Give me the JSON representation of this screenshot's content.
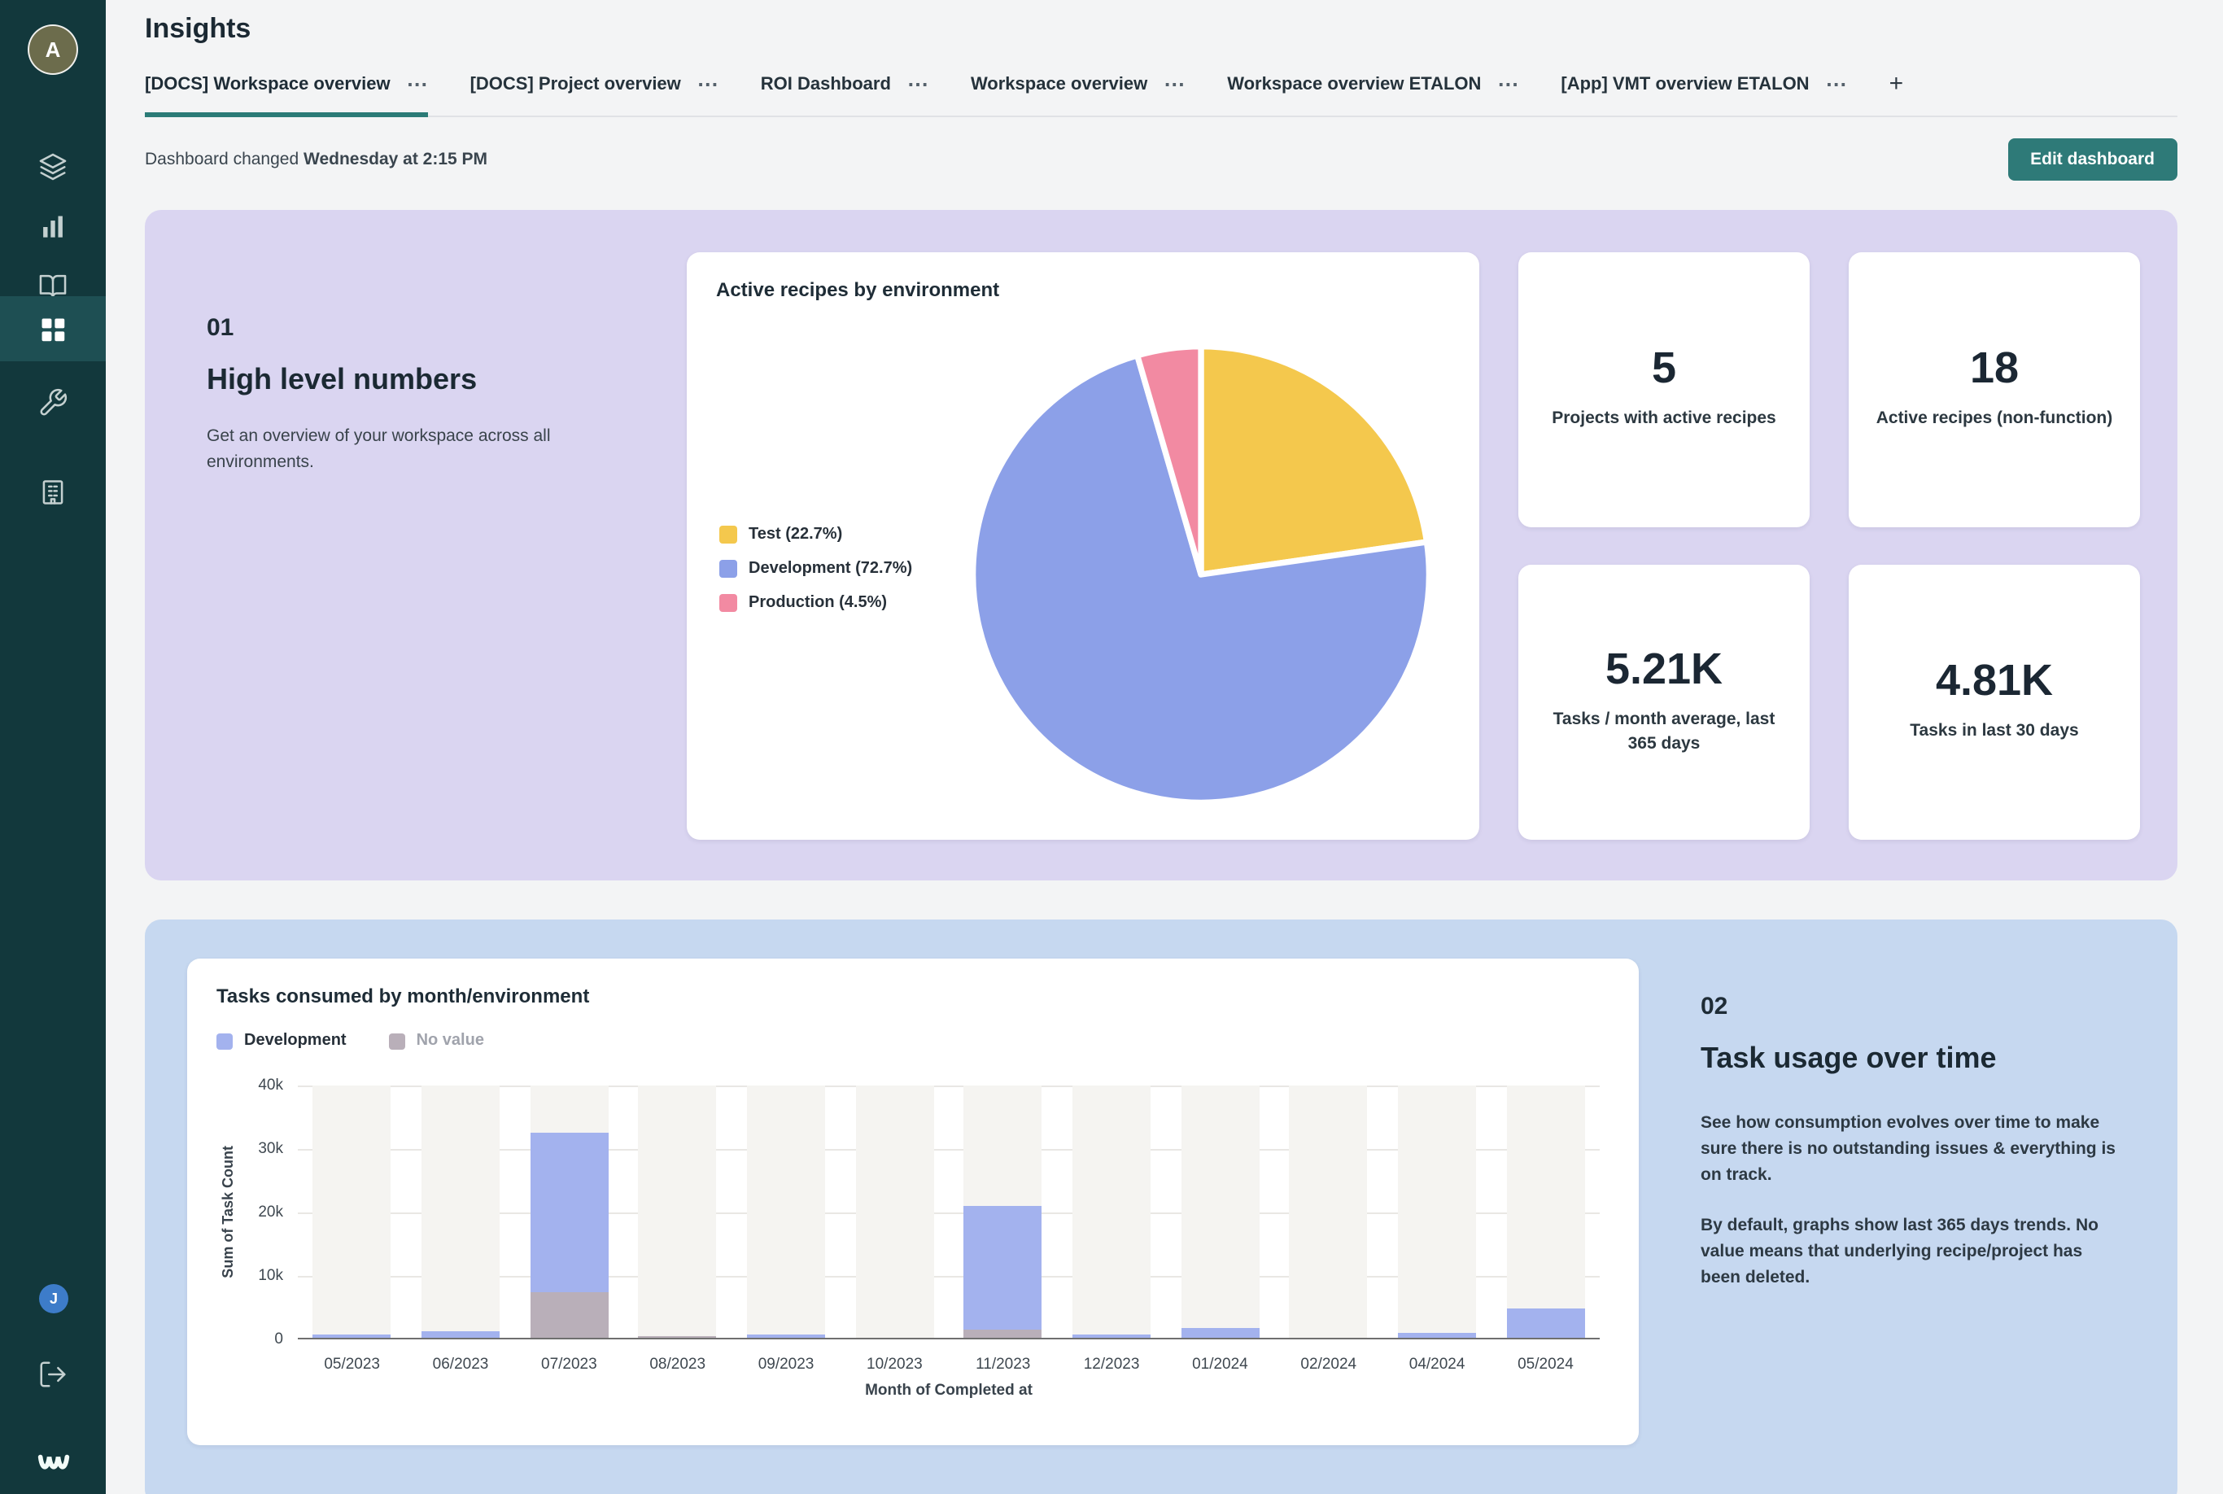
{
  "colors": {
    "accent_teal": "#2B7B77",
    "sidebar_bg": "#12383C",
    "section1_bg": "#DAD5F1",
    "section2_bg": "#C6D8F0"
  },
  "sidebar": {
    "avatar_initial": "A",
    "bottom_avatar_initial": "J"
  },
  "page": {
    "title": "Insights"
  },
  "tabs": {
    "items": [
      {
        "label": "[DOCS] Workspace overview",
        "active": true
      },
      {
        "label": "[DOCS] Project overview",
        "active": false
      },
      {
        "label": "ROI Dashboard",
        "active": false
      },
      {
        "label": "Workspace overview",
        "active": false
      },
      {
        "label": "Workspace overview ETALON",
        "active": false
      },
      {
        "label": "[App] VMT overview ETALON",
        "active": false
      }
    ],
    "more_icon": "⋯",
    "add_icon": "+"
  },
  "header": {
    "changed_prefix": "Dashboard changed",
    "changed_time": "Wednesday at 2:15 PM",
    "edit_button": "Edit dashboard"
  },
  "section1": {
    "number": "01",
    "title": "High level numbers",
    "description": "Get an overview of your workspace across all environments.",
    "stats": [
      {
        "value": "5",
        "label": "Projects with active recipes"
      },
      {
        "value": "18",
        "label": "Active recipes (non-function)"
      },
      {
        "value": "5.21K",
        "label": "Tasks / month average, last 365 days"
      },
      {
        "value": "4.81K",
        "label": "Tasks in last 30 days"
      }
    ]
  },
  "section2": {
    "number": "02",
    "title": "Task usage over time",
    "p1": "See how consumption evolves over time to make sure there is no outstanding issues & everything is on track.",
    "p2": "By default, graphs show last 365 days trends. No value means that underlying recipe/project has been deleted."
  },
  "chart_data": [
    {
      "type": "pie",
      "title": "Active recipes by environment",
      "legend_position": "left",
      "slices": [
        {
          "label": "Test",
          "pct": 22.7,
          "color": "#F4C84D"
        },
        {
          "label": "Development",
          "pct": 72.7,
          "color": "#8CA0E8"
        },
        {
          "label": "Production",
          "pct": 4.5,
          "color": "#F28AA2"
        }
      ]
    },
    {
      "type": "bar",
      "stacked": true,
      "title": "Tasks consumed by month/environment",
      "categories": [
        "05/2023",
        "06/2023",
        "07/2023",
        "08/2023",
        "09/2023",
        "10/2023",
        "11/2023",
        "12/2023",
        "01/2024",
        "02/2024",
        "04/2024",
        "05/2024"
      ],
      "series": [
        {
          "name": "Development",
          "color": "#A3B2EE",
          "values": [
            500,
            900,
            25000,
            0,
            500,
            0,
            19500,
            400,
            1800,
            300,
            1000,
            4800
          ]
        },
        {
          "name": "No value",
          "color": "#B9AFB9",
          "values": [
            100,
            200,
            7500,
            400,
            100,
            0,
            1500,
            100,
            0,
            0,
            0,
            0
          ]
        }
      ],
      "xlabel": "Month of Completed at",
      "ylabel": "Sum of Task Count",
      "ylim": [
        0,
        40000
      ],
      "yticks": [
        "0",
        "10k",
        "20k",
        "30k",
        "40k"
      ],
      "grid": true,
      "legend_position": "top"
    }
  ]
}
